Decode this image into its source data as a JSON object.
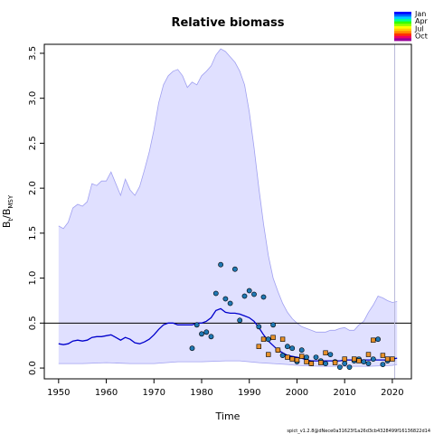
{
  "chart_data": {
    "type": "line",
    "title": "Relative biomass",
    "xlabel": "Time",
    "ylabel": {
      "base": "B",
      "sub1": "t",
      "sep": "/B",
      "sub2": "MSY"
    },
    "xlim": [
      1947,
      2024
    ],
    "ylim": [
      -0.12,
      3.6
    ],
    "xticks": [
      1950,
      1960,
      1970,
      1980,
      1990,
      2000,
      2010,
      2020
    ],
    "yticks": [
      0.0,
      0.5,
      1.0,
      1.5,
      2.0,
      2.5,
      3.0,
      3.5
    ],
    "reference_line": 0.5,
    "last_year_line": 2020.5,
    "grid": false,
    "colors": {
      "band_fill": "#e0e0ff",
      "band_edge": "#a0a0f0",
      "median_line": "#0000cc",
      "ref_line": "#000000",
      "last_year": "#b8b8d8",
      "circle_points": "#1f78b4",
      "square_points": "#e6902a"
    },
    "upper_band": {
      "x": [
        1950,
        1951,
        1952,
        1953,
        1954,
        1955,
        1956,
        1957,
        1958,
        1959,
        1960,
        1961,
        1962,
        1963,
        1964,
        1965,
        1966,
        1967,
        1968,
        1969,
        1970,
        1971,
        1972,
        1973,
        1974,
        1975,
        1976,
        1977,
        1978,
        1979,
        1980,
        1981,
        1982,
        1983,
        1984,
        1985,
        1986,
        1987,
        1988,
        1989,
        1990,
        1991,
        1992,
        1993,
        1994,
        1995,
        1996,
        1997,
        1998,
        1999,
        2000,
        2001,
        2002,
        2003,
        2004,
        2005,
        2006,
        2007,
        2008,
        2009,
        2010,
        2011,
        2012,
        2013,
        2014,
        2015,
        2016,
        2017,
        2018,
        2019,
        2020,
        2021
      ],
      "y": [
        1.58,
        1.55,
        1.62,
        1.78,
        1.82,
        1.8,
        1.85,
        2.05,
        2.03,
        2.08,
        2.08,
        2.18,
        2.05,
        1.92,
        2.1,
        1.98,
        1.92,
        2.02,
        2.2,
        2.4,
        2.65,
        2.95,
        3.15,
        3.25,
        3.3,
        3.32,
        3.25,
        3.12,
        3.18,
        3.15,
        3.25,
        3.3,
        3.36,
        3.48,
        3.55,
        3.52,
        3.46,
        3.4,
        3.3,
        3.15,
        2.85,
        2.45,
        2.0,
        1.6,
        1.25,
        1.0,
        0.85,
        0.72,
        0.62,
        0.55,
        0.5,
        0.46,
        0.44,
        0.42,
        0.4,
        0.4,
        0.4,
        0.42,
        0.42,
        0.44,
        0.45,
        0.42,
        0.42,
        0.48,
        0.52,
        0.62,
        0.7,
        0.8,
        0.78,
        0.75,
        0.73,
        0.74
      ]
    },
    "lower_band": {
      "x": [
        1950,
        1955,
        1960,
        1965,
        1970,
        1975,
        1980,
        1985,
        1988,
        1990,
        1992,
        1995,
        1998,
        2000,
        2005,
        2010,
        2015,
        2020,
        2021
      ],
      "y": [
        0.05,
        0.05,
        0.06,
        0.05,
        0.05,
        0.07,
        0.07,
        0.08,
        0.08,
        0.07,
        0.06,
        0.05,
        0.04,
        0.03,
        0.02,
        0.02,
        0.02,
        0.03,
        0.04
      ]
    },
    "median": {
      "x": [
        1950,
        1951,
        1952,
        1953,
        1954,
        1955,
        1956,
        1957,
        1958,
        1959,
        1960,
        1961,
        1962,
        1963,
        1964,
        1965,
        1966,
        1967,
        1968,
        1969,
        1970,
        1971,
        1972,
        1973,
        1974,
        1975,
        1976,
        1977,
        1978,
        1979,
        1980,
        1981,
        1982,
        1983,
        1984,
        1985,
        1986,
        1987,
        1988,
        1989,
        1990,
        1991,
        1992,
        1993,
        1994,
        1995,
        1996,
        1997,
        1998,
        1999,
        2000,
        2001,
        2002,
        2003,
        2004,
        2005,
        2006,
        2007,
        2008,
        2009,
        2010,
        2011,
        2012,
        2013,
        2014,
        2015,
        2016,
        2017,
        2018,
        2019,
        2020,
        2021
      ],
      "y": [
        0.27,
        0.26,
        0.27,
        0.3,
        0.31,
        0.3,
        0.31,
        0.34,
        0.35,
        0.35,
        0.36,
        0.37,
        0.34,
        0.31,
        0.34,
        0.32,
        0.28,
        0.27,
        0.29,
        0.32,
        0.37,
        0.43,
        0.48,
        0.5,
        0.5,
        0.48,
        0.48,
        0.48,
        0.48,
        0.5,
        0.5,
        0.52,
        0.56,
        0.64,
        0.66,
        0.62,
        0.61,
        0.61,
        0.6,
        0.58,
        0.56,
        0.52,
        0.45,
        0.37,
        0.3,
        0.25,
        0.2,
        0.17,
        0.14,
        0.13,
        0.12,
        0.11,
        0.09,
        0.08,
        0.08,
        0.08,
        0.08,
        0.08,
        0.08,
        0.08,
        0.09,
        0.09,
        0.09,
        0.09,
        0.09,
        0.09,
        0.09,
        0.09,
        0.09,
        0.09,
        0.1,
        0.11
      ]
    },
    "observations_circle": {
      "x": [
        1978,
        1979,
        1980,
        1981,
        1982,
        1983,
        1984,
        1985,
        1986,
        1987,
        1988,
        1989,
        1990,
        1991,
        1992,
        1993,
        1994,
        1995,
        1996,
        1997,
        1998,
        1999,
        2000,
        2001,
        2002,
        2003,
        2004,
        2005,
        2006,
        2007,
        2008,
        2009,
        2010,
        2011,
        2012,
        2013,
        2014,
        2015,
        2016,
        2017,
        2018,
        2019
      ],
      "y": [
        0.22,
        0.48,
        0.38,
        0.4,
        0.35,
        0.83,
        1.15,
        0.77,
        0.72,
        1.1,
        0.53,
        0.8,
        0.86,
        0.82,
        0.46,
        0.79,
        0.32,
        0.48,
        0.2,
        0.14,
        0.24,
        0.22,
        0.07,
        0.2,
        0.12,
        0.05,
        0.12,
        0.08,
        0.05,
        0.15,
        0.07,
        0.01,
        0.05,
        0.01,
        0.08,
        0.1,
        0.07,
        0.05,
        0.1,
        0.32,
        0.04,
        0.08
      ]
    },
    "observations_square": {
      "x": [
        1992,
        1993,
        1994,
        1995,
        1996,
        1997,
        1998,
        1999,
        2000,
        2001,
        2002,
        2003,
        2005,
        2006,
        2008,
        2010,
        2012,
        2013,
        2015,
        2016,
        2018,
        2019,
        2020
      ],
      "y": [
        0.24,
        0.32,
        0.15,
        0.34,
        0.2,
        0.32,
        0.12,
        0.1,
        0.09,
        0.13,
        0.07,
        0.05,
        0.06,
        0.17,
        0.06,
        0.1,
        0.1,
        0.08,
        0.15,
        0.31,
        0.14,
        0.1,
        0.1
      ]
    },
    "legend": {
      "labels": [
        "Jan",
        "Apr",
        "Jul",
        "Oct"
      ],
      "colors": [
        "#0000ff",
        "#0066ff",
        "#00ccff",
        "#00ff99",
        "#33ff00",
        "#99ff00",
        "#ffff00",
        "#ffcc00",
        "#ff8800",
        "#ff3300",
        "#ee0066",
        "#990099"
      ]
    },
    "footnote": "spict_v1.2.8@dNece0a31623f1a26d3cb4328499f16136822d14"
  }
}
